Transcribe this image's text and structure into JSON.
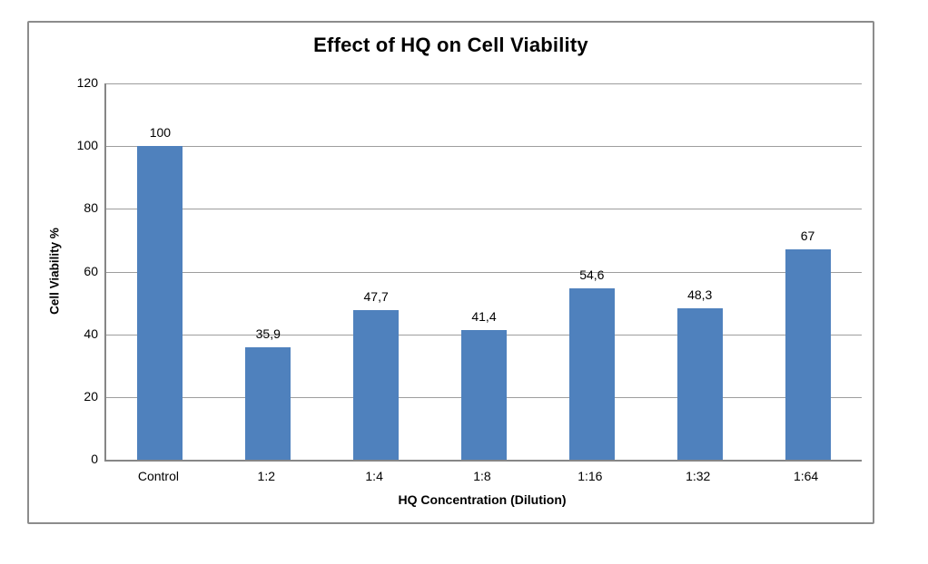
{
  "chart_data": {
    "type": "bar",
    "title": "Effect of HQ on Cell Viability",
    "xlabel": "HQ Concentration (Dilution)",
    "ylabel": "Cell Viability %",
    "categories": [
      "Control",
      "1:2",
      "1:4",
      "1:8",
      "1:16",
      "1:32",
      "1:64"
    ],
    "values": [
      100,
      35.9,
      47.7,
      41.4,
      54.6,
      48.3,
      67
    ],
    "value_labels": [
      "100",
      "35,9",
      "47,7",
      "41,4",
      "54,6",
      "48,3",
      "67"
    ],
    "ylim": [
      0,
      120
    ],
    "yticks": [
      0,
      20,
      40,
      60,
      80,
      100,
      120
    ],
    "grid": true,
    "legend": false,
    "bar_color": "#4F81BD",
    "gridline_color": "#9d9d9d",
    "axis_color": "#868686"
  }
}
